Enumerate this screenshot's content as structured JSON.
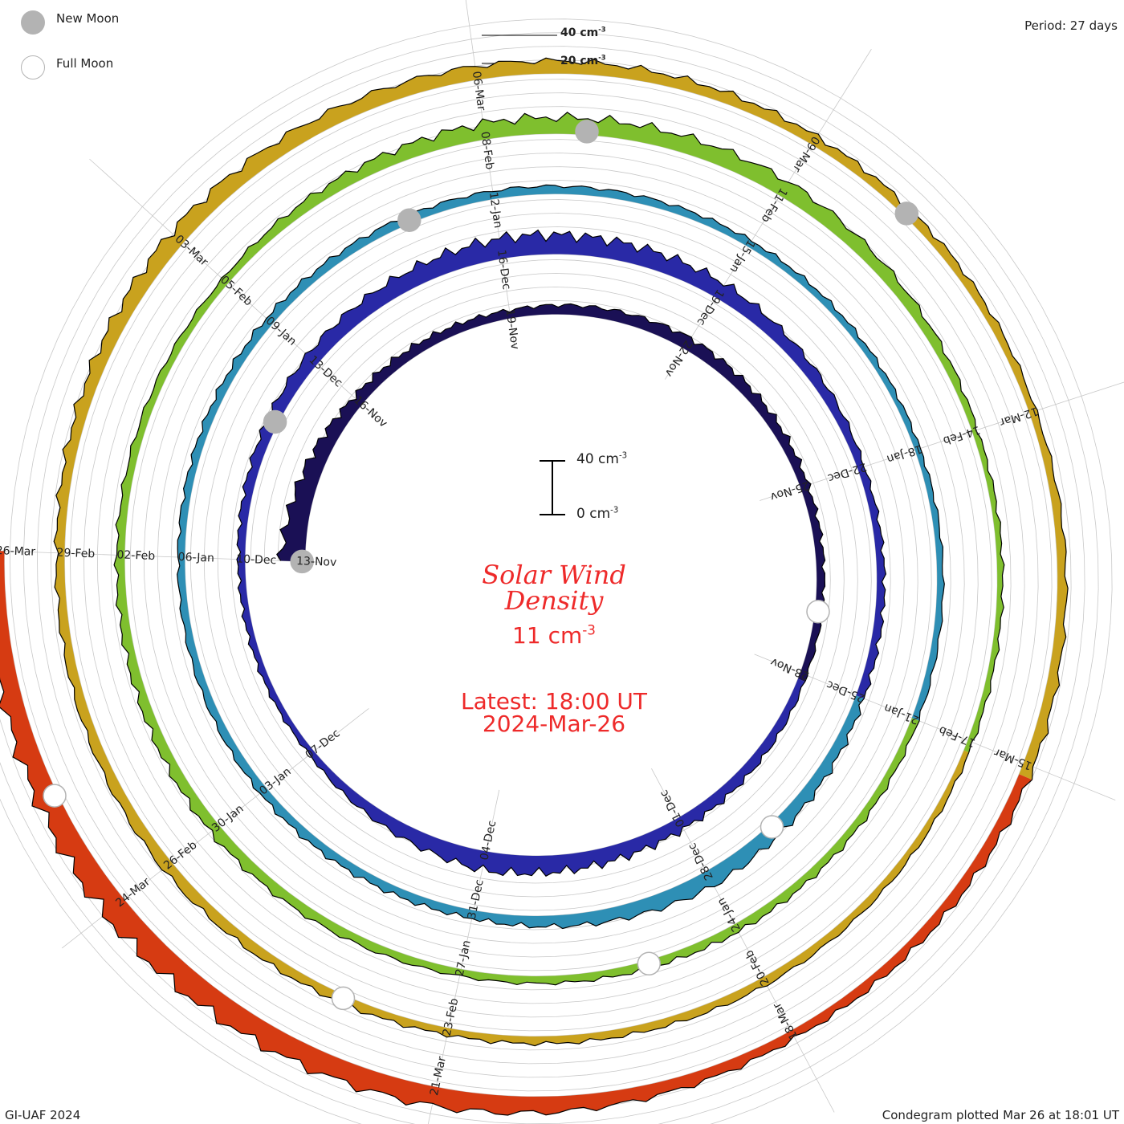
{
  "legend": {
    "new_moon_label": "New Moon",
    "full_moon_label": "Full Moon",
    "new_moon_color": "#b3b3b3",
    "full_moon_color": "#b3b3b3"
  },
  "period_label": "Period: 27 days",
  "title_line1": "Solar Wind",
  "title_line2": "Density",
  "current_value": "11",
  "current_unit": "cm",
  "unit_exponent": "-3",
  "latest_label": "Latest: 18:00 UT",
  "latest_date": "2024-Mar-26",
  "footer_left": "GI-UAF 2024",
  "footer_right": "Condegram plotted Mar 26 at 18:01 UT",
  "scale_bar": {
    "top_label": "40 cm",
    "bottom_label": "0 cm",
    "exponent": "-3"
  },
  "outer_scale": {
    "label_40": "40 cm",
    "label_20": "20 cm",
    "exponent": "-3"
  },
  "colors": {
    "title_red": "#ee2a2a",
    "text": "#222222",
    "grid": "#c8c8c8"
  },
  "chart_data": {
    "type": "area",
    "layout": "condegram-spiral",
    "title": "Solar Wind Density",
    "period_days": 27,
    "y_unit": "cm^-3",
    "ylim": [
      0,
      40
    ],
    "rotations": [
      {
        "color": "#1a1055",
        "date_labels": [
          {
            "label": "13-Nov",
            "value": 18
          },
          {
            "label": "16-Nov",
            "value": 8
          },
          {
            "label": "19-Nov",
            "value": 6
          },
          {
            "label": "22-Nov",
            "value": 9
          },
          {
            "label": "25-Nov",
            "value": 6
          }
        ]
      },
      {
        "color": "#2929a6",
        "date_labels": [
          {
            "label": "28-Nov",
            "value": 5
          },
          {
            "label": "01-Dec",
            "value": 9
          },
          {
            "label": "04-Dec",
            "value": 14
          },
          {
            "label": "07-Dec",
            "value": 4
          },
          {
            "label": "10-Dec",
            "value": 5
          },
          {
            "label": "13-Dec",
            "value": 10
          },
          {
            "label": "16-Dec",
            "value": 15
          },
          {
            "label": "19-Dec",
            "value": 12
          },
          {
            "label": "22-Dec",
            "value": 5
          }
        ]
      },
      {
        "color": "#2e8fb5",
        "date_labels": [
          {
            "label": "25-Dec",
            "value": 6
          },
          {
            "label": "28-Dec",
            "value": 12
          },
          {
            "label": "31-Dec",
            "value": 6
          },
          {
            "label": "03-Jan",
            "value": 6
          },
          {
            "label": "06-Jan",
            "value": 5
          },
          {
            "label": "09-Jan",
            "value": 6
          },
          {
            "label": "12-Jan",
            "value": 6
          },
          {
            "label": "15-Jan",
            "value": 5
          },
          {
            "label": "18-Jan",
            "value": 4
          }
        ]
      },
      {
        "color": "#7fbf2e",
        "date_labels": [
          {
            "label": "21-Jan",
            "value": 5
          },
          {
            "label": "24-Jan",
            "value": 6
          },
          {
            "label": "27-Jan",
            "value": 5
          },
          {
            "label": "30-Jan",
            "value": 8
          },
          {
            "label": "02-Feb",
            "value": 6
          },
          {
            "label": "05-Feb",
            "value": 5
          },
          {
            "label": "08-Feb",
            "value": 12
          },
          {
            "label": "11-Feb",
            "value": 12
          },
          {
            "label": "14-Feb",
            "value": 4
          }
        ]
      },
      {
        "color": "#c9a21e",
        "date_labels": [
          {
            "label": "17-Feb",
            "value": 4
          },
          {
            "label": "20-Feb",
            "value": 6
          },
          {
            "label": "23-Feb",
            "value": 5
          },
          {
            "label": "26-Feb",
            "value": 8
          },
          {
            "label": "29-Feb",
            "value": 6
          },
          {
            "label": "03-Mar",
            "value": 12
          },
          {
            "label": "06-Mar",
            "value": 10
          },
          {
            "label": "09-Mar",
            "value": 7
          },
          {
            "label": "12-Mar",
            "value": 5
          }
        ]
      },
      {
        "color": "#d63b12",
        "date_labels": [
          {
            "label": "15-Mar",
            "value": 8
          },
          {
            "label": "18-Mar",
            "value": 6
          },
          {
            "label": "21-Mar",
            "value": 14
          },
          {
            "label": "24-Mar",
            "value": 18
          },
          {
            "label": "26-Mar",
            "value": 11
          }
        ]
      }
    ],
    "moon_phases": [
      {
        "phase": "new",
        "date": "13-Nov"
      },
      {
        "phase": "full",
        "date": "27-Nov"
      },
      {
        "phase": "new",
        "date": "12-Dec"
      },
      {
        "phase": "full",
        "date": "27-Dec"
      },
      {
        "phase": "new",
        "date": "11-Jan"
      },
      {
        "phase": "full",
        "date": "25-Jan"
      },
      {
        "phase": "new",
        "date": "09-Feb"
      },
      {
        "phase": "full",
        "date": "24-Feb"
      },
      {
        "phase": "new",
        "date": "10-Mar"
      },
      {
        "phase": "full",
        "date": "25-Mar"
      }
    ]
  }
}
